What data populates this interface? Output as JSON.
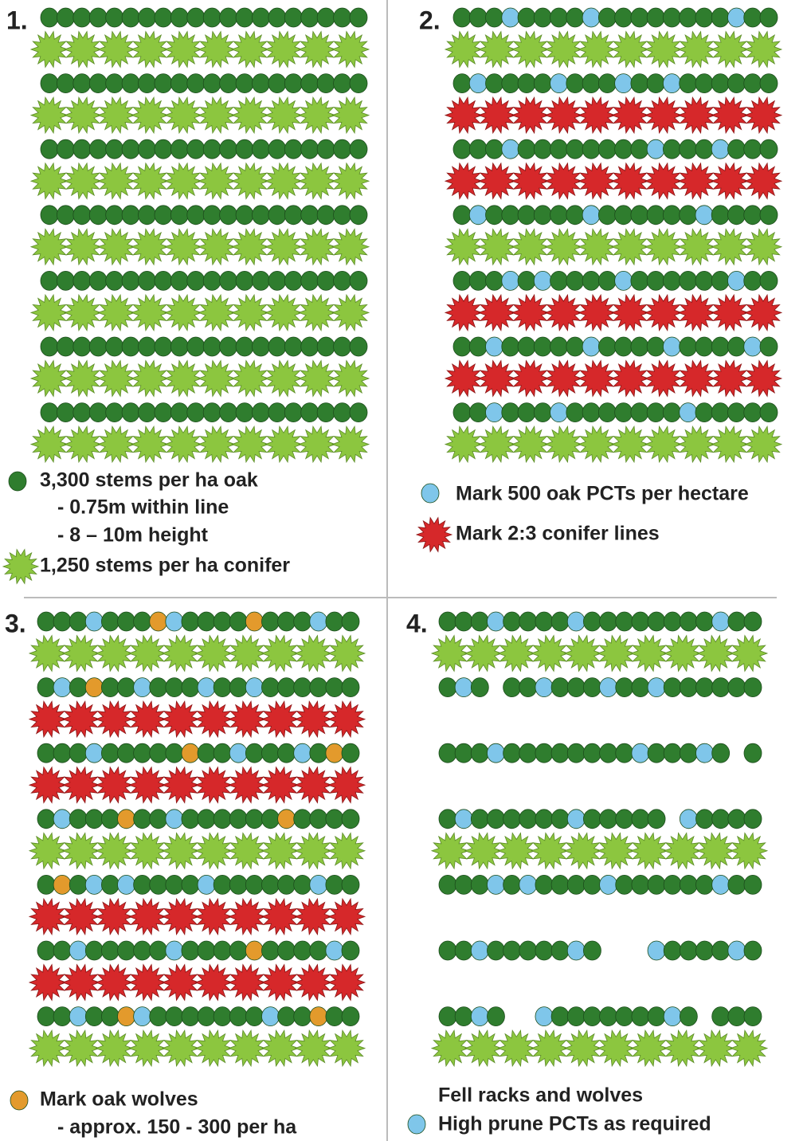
{
  "panels": [
    {
      "number": "1.",
      "legend": [
        "3,300 stems per ha oak",
        "- 0.75m within line",
        "- 8 – 10m height",
        "1,250 stems per ha conifer"
      ]
    },
    {
      "number": "2.",
      "legend": [
        "Mark 500 oak PCTs per hectare",
        "Mark 2:3 conifer lines"
      ]
    },
    {
      "number": "3.",
      "legend": [
        "Mark oak wolves",
        "- approx. 150 - 300 per ha"
      ]
    },
    {
      "number": "4.",
      "legend": [
        "Fell racks and wolves",
        "High prune PCTs as required"
      ]
    }
  ]
}
